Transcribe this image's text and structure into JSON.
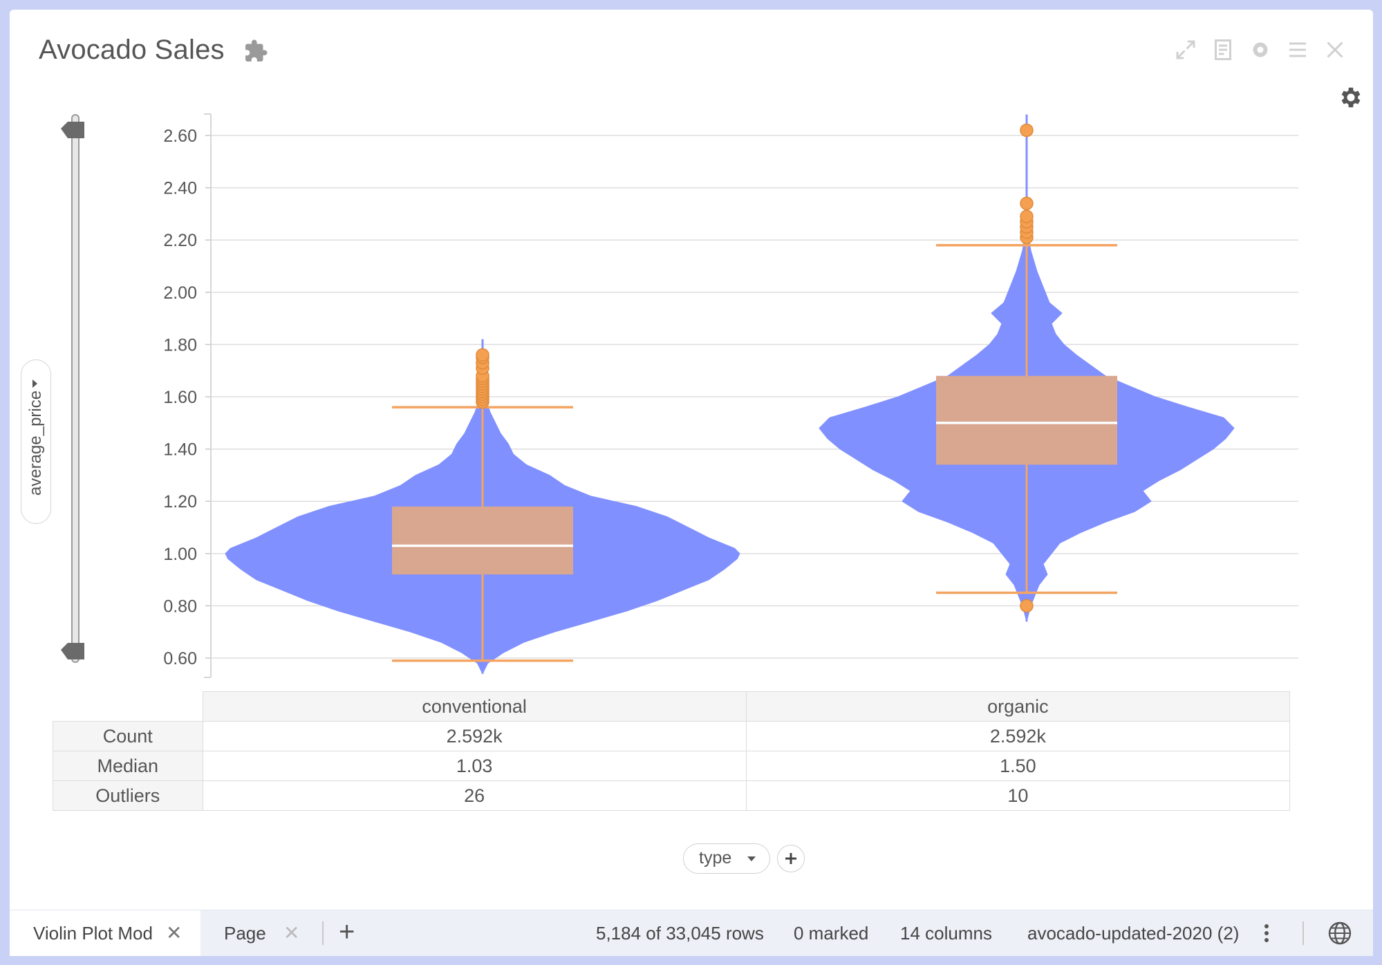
{
  "window": {
    "title": "Avocado Sales",
    "y_axis_selector": "average_price",
    "x_axis_selector": "type"
  },
  "colors": {
    "violin": "#8090ff",
    "box": "#d9a690",
    "whisker": "#f4a462",
    "outlier": "#f4a050",
    "median": "#ffffff"
  },
  "chart_data": {
    "type": "violin",
    "categories": [
      "conventional",
      "organic"
    ],
    "y_ticks": [
      "2.60",
      "2.40",
      "2.20",
      "2.00",
      "1.80",
      "1.60",
      "1.40",
      "1.20",
      "1.00",
      "0.80",
      "0.60"
    ],
    "ylim": [
      0.53,
      2.68
    ],
    "grid": true,
    "series": [
      {
        "category": "conventional",
        "min": 0.54,
        "max": 1.82,
        "q1": 0.92,
        "median": 1.03,
        "q3": 1.18,
        "whisker_low": 0.59,
        "whisker_high": 1.56,
        "outliers": [
          1.58,
          1.59,
          1.6,
          1.61,
          1.62,
          1.63,
          1.64,
          1.65,
          1.66,
          1.67,
          1.68,
          1.71,
          1.73,
          1.75,
          1.76
        ],
        "density": [
          [
            0.54,
            0.0
          ],
          [
            0.58,
            0.02
          ],
          [
            0.62,
            0.08
          ],
          [
            0.66,
            0.16
          ],
          [
            0.7,
            0.28
          ],
          [
            0.74,
            0.42
          ],
          [
            0.78,
            0.56
          ],
          [
            0.82,
            0.68
          ],
          [
            0.86,
            0.78
          ],
          [
            0.9,
            0.88
          ],
          [
            0.94,
            0.94
          ],
          [
            0.98,
            0.99
          ],
          [
            1.0,
            1.0
          ],
          [
            1.02,
            0.98
          ],
          [
            1.06,
            0.88
          ],
          [
            1.1,
            0.8
          ],
          [
            1.14,
            0.72
          ],
          [
            1.18,
            0.6
          ],
          [
            1.22,
            0.42
          ],
          [
            1.26,
            0.32
          ],
          [
            1.3,
            0.26
          ],
          [
            1.34,
            0.17
          ],
          [
            1.38,
            0.12
          ],
          [
            1.42,
            0.1
          ],
          [
            1.46,
            0.07
          ],
          [
            1.5,
            0.05
          ],
          [
            1.54,
            0.03
          ],
          [
            1.58,
            0.015
          ],
          [
            1.62,
            0.007
          ],
          [
            1.7,
            0.004
          ],
          [
            1.82,
            0.0
          ]
        ]
      },
      {
        "category": "organic",
        "min": 0.74,
        "max": 2.68,
        "q1": 1.34,
        "median": 1.5,
        "q3": 1.68,
        "whisker_low": 0.85,
        "whisker_high": 2.18,
        "outliers": [
          0.8,
          2.21,
          2.23,
          2.25,
          2.27,
          2.29,
          2.34,
          2.62
        ],
        "density": [
          [
            0.74,
            0.0
          ],
          [
            0.8,
            0.02
          ],
          [
            0.84,
            0.04
          ],
          [
            0.88,
            0.06
          ],
          [
            0.92,
            0.1
          ],
          [
            0.96,
            0.08
          ],
          [
            1.0,
            0.12
          ],
          [
            1.04,
            0.16
          ],
          [
            1.08,
            0.26
          ],
          [
            1.12,
            0.38
          ],
          [
            1.16,
            0.52
          ],
          [
            1.2,
            0.6
          ],
          [
            1.24,
            0.56
          ],
          [
            1.28,
            0.64
          ],
          [
            1.32,
            0.74
          ],
          [
            1.36,
            0.82
          ],
          [
            1.4,
            0.9
          ],
          [
            1.44,
            0.96
          ],
          [
            1.48,
            1.0
          ],
          [
            1.52,
            0.95
          ],
          [
            1.56,
            0.78
          ],
          [
            1.6,
            0.62
          ],
          [
            1.64,
            0.5
          ],
          [
            1.68,
            0.38
          ],
          [
            1.72,
            0.31
          ],
          [
            1.76,
            0.24
          ],
          [
            1.8,
            0.18
          ],
          [
            1.84,
            0.14
          ],
          [
            1.88,
            0.12
          ],
          [
            1.92,
            0.17
          ],
          [
            1.96,
            0.11
          ],
          [
            2.0,
            0.09
          ],
          [
            2.04,
            0.07
          ],
          [
            2.08,
            0.05
          ],
          [
            2.12,
            0.035
          ],
          [
            2.16,
            0.02
          ],
          [
            2.2,
            0.012
          ],
          [
            2.3,
            0.004
          ],
          [
            2.5,
            0.002
          ],
          [
            2.68,
            0.0
          ]
        ]
      }
    ]
  },
  "stats_table": {
    "rows": [
      {
        "label": "Count",
        "values": [
          "2.592k",
          "2.592k"
        ]
      },
      {
        "label": "Median",
        "values": [
          "1.03",
          "1.50"
        ]
      },
      {
        "label": "Outliers",
        "values": [
          "26",
          "10"
        ]
      }
    ]
  },
  "bottom_bar": {
    "tabs": [
      {
        "label": "Violin Plot Mod"
      },
      {
        "label": "Page"
      }
    ],
    "rows_status": "5,184 of 33,045 rows",
    "marked_status": "0 marked",
    "columns_status": "14 columns",
    "dataset_name": "avocado-updated-2020 (2)"
  }
}
